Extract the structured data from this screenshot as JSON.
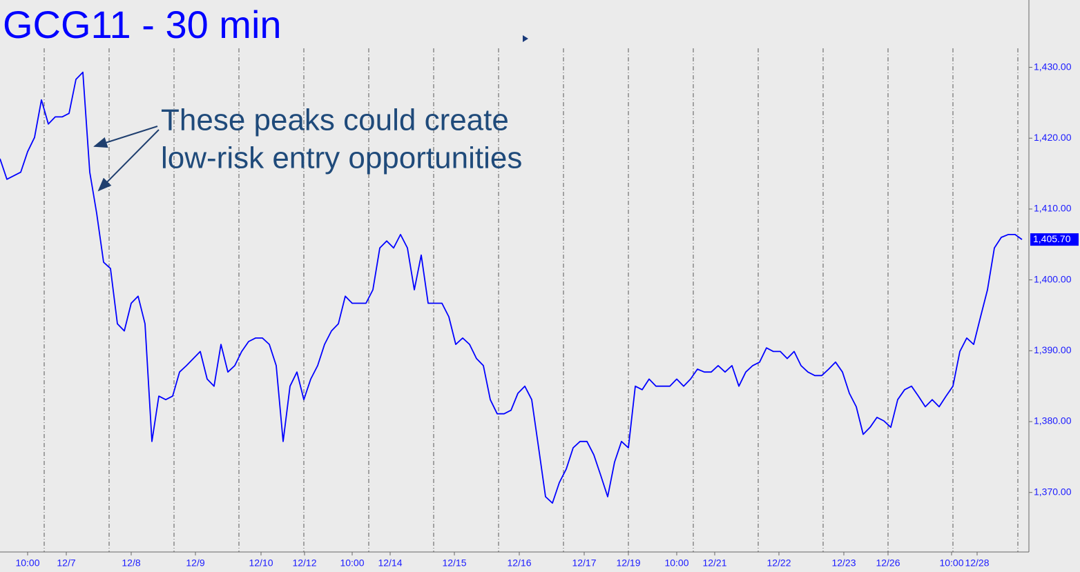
{
  "chart_data": {
    "type": "line",
    "title": "GCG11 - 30 min",
    "annotations": [
      "These peaks could create",
      "low-risk entry opportunities"
    ],
    "series": [
      {
        "name": "GCG11",
        "color": "#0000ff",
        "values": [
          1417.1,
          1414.2,
          1414.7,
          1415.2,
          1418.1,
          1420.1,
          1425.4,
          1422.0,
          1423.0,
          1423.0,
          1423.5,
          1428.3,
          1429.3,
          1415.2,
          1409.4,
          1402.5,
          1401.6,
          1393.8,
          1392.8,
          1396.7,
          1397.7,
          1393.8,
          1377.2,
          1383.6,
          1383.1,
          1383.6,
          1387.0,
          1387.9,
          1388.9,
          1389.9,
          1386.0,
          1385.0,
          1390.9,
          1387.0,
          1387.9,
          1389.9,
          1391.3,
          1391.8,
          1391.8,
          1390.9,
          1387.9,
          1377.2,
          1385.0,
          1387.0,
          1383.1,
          1386.0,
          1387.9,
          1390.9,
          1392.8,
          1393.8,
          1397.7,
          1396.7,
          1396.7,
          1396.7,
          1398.6,
          1404.5,
          1405.5,
          1404.5,
          1406.4,
          1404.5,
          1398.6,
          1403.5,
          1396.7,
          1396.7,
          1396.7,
          1394.8,
          1390.9,
          1391.8,
          1390.9,
          1388.9,
          1387.9,
          1383.1,
          1381.1,
          1381.1,
          1381.6,
          1384.0,
          1385.0,
          1383.1,
          1376.3,
          1369.4,
          1368.5,
          1371.4,
          1373.3,
          1376.3,
          1377.2,
          1377.2,
          1375.3,
          1372.4,
          1369.4,
          1374.3,
          1377.2,
          1376.3,
          1385.0,
          1384.5,
          1386.0,
          1385.0,
          1385.0,
          1385.0,
          1386.0,
          1385.0,
          1386.0,
          1387.4,
          1387.0,
          1387.0,
          1387.9,
          1387.0,
          1387.9,
          1385.0,
          1387.0,
          1387.9,
          1388.4,
          1390.4,
          1389.9,
          1389.9,
          1388.9,
          1389.9,
          1387.9,
          1387.0,
          1386.5,
          1386.5,
          1387.4,
          1388.4,
          1387.0,
          1384.0,
          1382.1,
          1378.2,
          1379.2,
          1380.6,
          1380.1,
          1379.2,
          1383.1,
          1384.5,
          1385.0,
          1383.6,
          1382.1,
          1383.1,
          1382.1,
          1383.6,
          1385.0,
          1389.9,
          1391.8,
          1390.9,
          1394.8,
          1398.6,
          1404.5,
          1406.0,
          1406.4,
          1406.4,
          1405.7
        ]
      }
    ],
    "last_value": {
      "value": 1405.7,
      "label": "1,405.70"
    },
    "xlim": [
      0,
      149
    ],
    "xticks": [
      {
        "value": 4.0,
        "label": "10:00"
      },
      {
        "value": 9.6,
        "label": "12/7"
      },
      {
        "value": 19.0,
        "label": "12/8"
      },
      {
        "value": 28.3,
        "label": "12/9"
      },
      {
        "value": 37.8,
        "label": "12/10"
      },
      {
        "value": 44.1,
        "label": "12/12"
      },
      {
        "value": 51.0,
        "label": "10:00"
      },
      {
        "value": 56.5,
        "label": "12/14"
      },
      {
        "value": 65.8,
        "label": "12/15"
      },
      {
        "value": 75.2,
        "label": "12/16"
      },
      {
        "value": 84.6,
        "label": "12/17"
      },
      {
        "value": 91.0,
        "label": "12/19"
      },
      {
        "value": 98.0,
        "label": "10:00"
      },
      {
        "value": 103.5,
        "label": "12/21"
      },
      {
        "value": 112.8,
        "label": "12/22"
      },
      {
        "value": 122.2,
        "label": "12/23"
      },
      {
        "value": 128.6,
        "label": "12/26"
      },
      {
        "value": 137.8,
        "label": "10:00"
      },
      {
        "value": 141.5,
        "label": "12/28"
      }
    ],
    "xgrid": [
      6.4,
      15.8,
      25.2,
      34.6,
      44.0,
      53.4,
      62.8,
      72.2,
      81.6,
      91.0,
      100.4,
      109.8,
      119.2,
      128.6,
      138.0,
      147.4
    ],
    "ylim": [
      1361.6,
      1439.5
    ],
    "yticks": [
      {
        "value": 1370,
        "label": "1,370.00"
      },
      {
        "value": 1380,
        "label": "1,380.00"
      },
      {
        "value": 1390,
        "label": "1,390.00"
      },
      {
        "value": 1400,
        "label": "1,400.00"
      },
      {
        "value": 1410,
        "label": "1,410.00"
      },
      {
        "value": 1420,
        "label": "1,420.00"
      },
      {
        "value": 1430,
        "label": "1,430.00"
      }
    ]
  }
}
